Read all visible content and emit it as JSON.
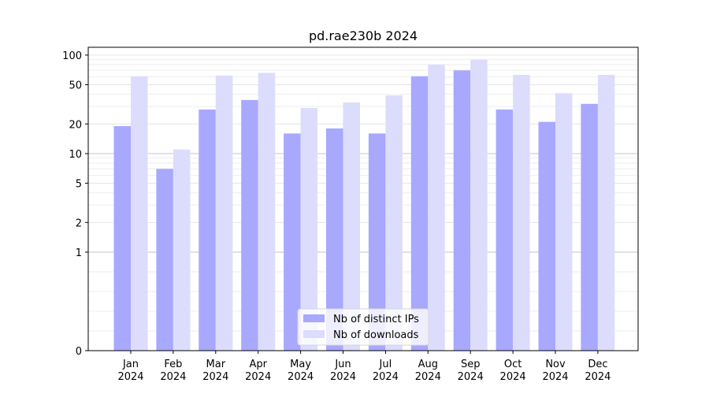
{
  "chart_data": {
    "type": "bar",
    "title": "pd.rae230b 2024",
    "xlabel": "",
    "ylabel": "",
    "scale": "symlog",
    "ylim": [
      0,
      120
    ],
    "yticks": [
      0,
      1,
      2,
      5,
      10,
      20,
      50,
      100
    ],
    "categories": [
      "Jan\n2024",
      "Feb\n2024",
      "Mar\n2024",
      "Apr\n2024",
      "May\n2024",
      "Jun\n2024",
      "Jul\n2024",
      "Aug\n2024",
      "Sep\n2024",
      "Oct\n2024",
      "Nov\n2024",
      "Dec\n2024"
    ],
    "series": [
      {
        "name": "Nb of distinct IPs",
        "color": "#a8a8ff",
        "values": [
          19,
          7,
          28,
          35,
          16,
          18,
          16,
          61,
          70,
          28,
          21,
          32
        ]
      },
      {
        "name": "Nb of downloads",
        "color": "#dcdcfd",
        "values": [
          61,
          11,
          62,
          66,
          29,
          33,
          39,
          80,
          90,
          63,
          41,
          63
        ]
      }
    ],
    "grid": true,
    "legend_position": "bottom-center"
  }
}
